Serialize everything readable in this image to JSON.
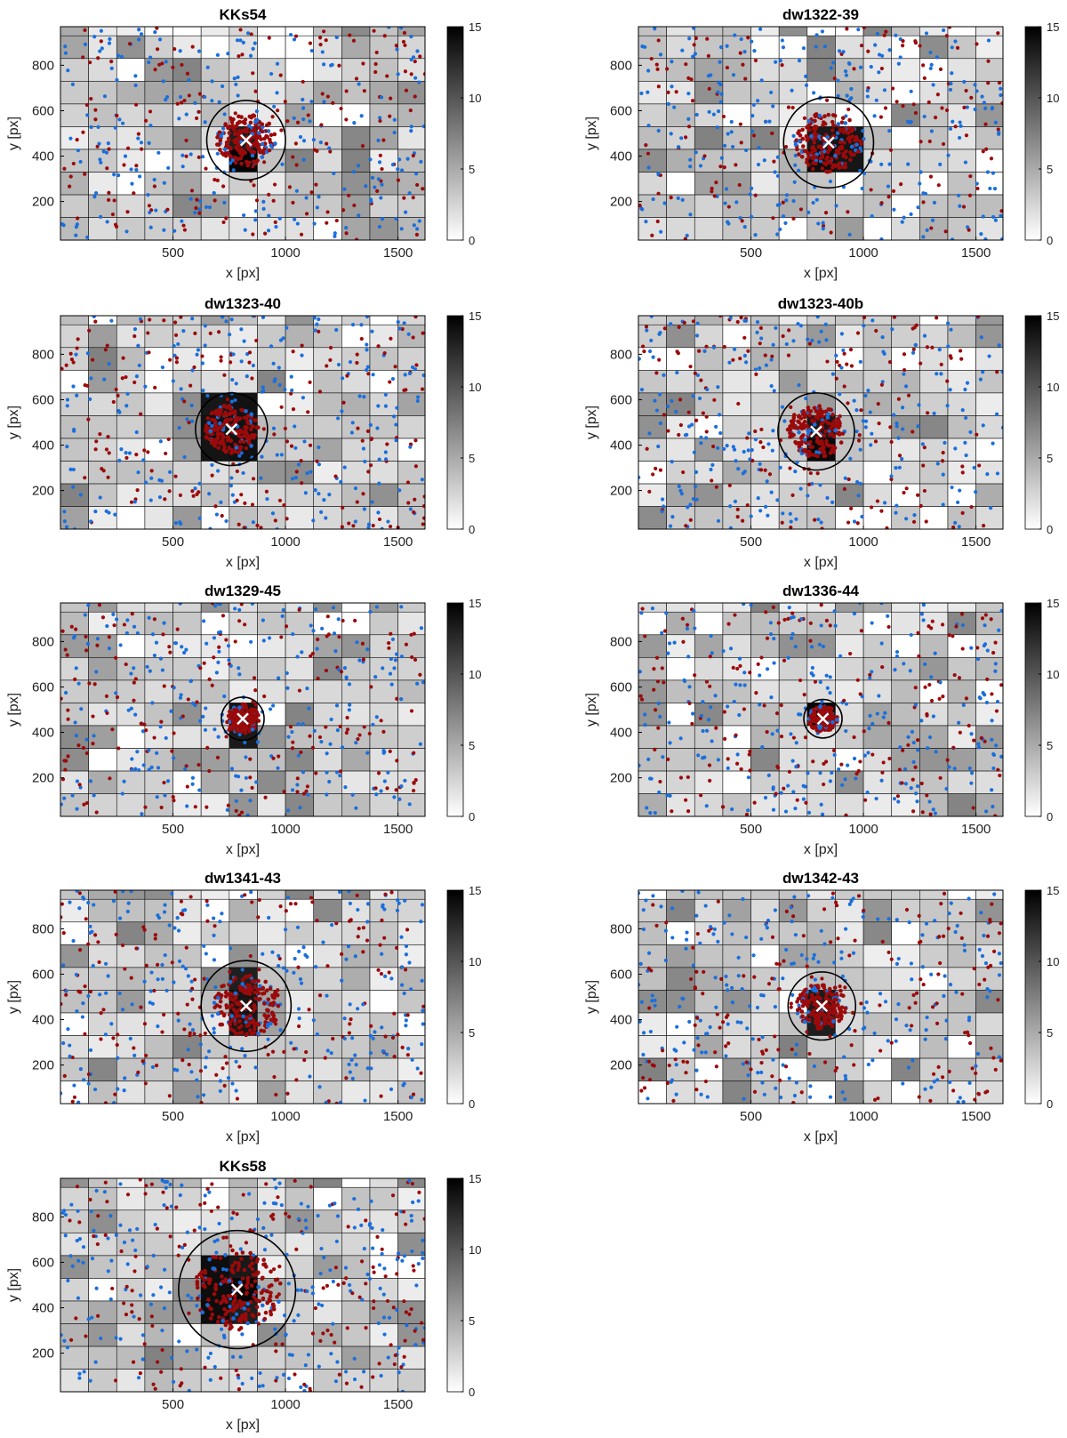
{
  "chart_data": [
    {
      "type": "heatmap",
      "title": "KKs54",
      "xlabel": "x [px]",
      "ylabel": "y [px]",
      "xlim": [
        0,
        1620
      ],
      "ylim": [
        30,
        970
      ],
      "xticks": [
        500,
        1000,
        1500
      ],
      "yticks": [
        200,
        400,
        600,
        800
      ],
      "colorbar": {
        "min": 0,
        "max": 15,
        "ticks": [
          0,
          5,
          10,
          15
        ]
      },
      "center": [
        825,
        470
      ],
      "circle_radius": 175,
      "core_rect": [
        725,
        900,
        320,
        570
      ]
    },
    {
      "type": "heatmap",
      "title": "dw1322-39",
      "xlabel": "x [px]",
      "ylabel": "y [px]",
      "xlim": [
        0,
        1620
      ],
      "ylim": [
        30,
        970
      ],
      "xticks": [
        500,
        1000,
        1500
      ],
      "yticks": [
        200,
        400,
        600,
        800
      ],
      "colorbar": {
        "min": 0,
        "max": 15,
        "ticks": [
          0,
          5,
          10,
          15
        ]
      },
      "center": [
        845,
        460
      ],
      "circle_radius": 200,
      "core_rect": [
        720,
        980,
        360,
        560
      ]
    },
    {
      "type": "heatmap",
      "title": "dw1323-40",
      "xlabel": "x [px]",
      "ylabel": "y [px]",
      "xlim": [
        0,
        1620
      ],
      "ylim": [
        30,
        970
      ],
      "xticks": [
        500,
        1000,
        1500
      ],
      "yticks": [
        200,
        400,
        600,
        800
      ],
      "colorbar": {
        "min": 0,
        "max": 15,
        "ticks": [
          0,
          5,
          10,
          15
        ]
      },
      "center": [
        760,
        470
      ],
      "circle_radius": 160,
      "core_rect": [
        600,
        900,
        340,
        640
      ]
    },
    {
      "type": "heatmap",
      "title": "dw1323-40b",
      "xlabel": "x [px]",
      "ylabel": "y [px]",
      "xlim": [
        0,
        1620
      ],
      "ylim": [
        30,
        970
      ],
      "xticks": [
        500,
        1000,
        1500
      ],
      "yticks": [
        200,
        400,
        600,
        800
      ],
      "colorbar": {
        "min": 0,
        "max": 15,
        "ticks": [
          0,
          5,
          10,
          15
        ]
      },
      "center": [
        790,
        460
      ],
      "circle_radius": 170,
      "core_rect": [
        720,
        900,
        320,
        560
      ]
    },
    {
      "type": "heatmap",
      "title": "dw1329-45",
      "xlabel": "x [px]",
      "ylabel": "y [px]",
      "xlim": [
        0,
        1620
      ],
      "ylim": [
        30,
        970
      ],
      "xticks": [
        500,
        1000,
        1500
      ],
      "yticks": [
        200,
        400,
        600,
        800
      ],
      "colorbar": {
        "min": 0,
        "max": 15,
        "ticks": [
          0,
          5,
          10,
          15
        ]
      },
      "center": [
        810,
        460
      ],
      "circle_radius": 95,
      "core_rect": [
        720,
        900,
        360,
        560
      ]
    },
    {
      "type": "heatmap",
      "title": "dw1336-44",
      "xlabel": "x [px]",
      "ylabel": "y [px]",
      "xlim": [
        0,
        1620
      ],
      "ylim": [
        30,
        970
      ],
      "xticks": [
        500,
        1000,
        1500
      ],
      "yticks": [
        200,
        400,
        600,
        800
      ],
      "colorbar": {
        "min": 0,
        "max": 15,
        "ticks": [
          0,
          5,
          10,
          15
        ]
      },
      "center": [
        820,
        460
      ],
      "circle_radius": 85,
      "core_rect": [
        720,
        900,
        380,
        540
      ]
    },
    {
      "type": "heatmap",
      "title": "dw1341-43",
      "xlabel": "x [px]",
      "ylabel": "y [px]",
      "xlim": [
        0,
        1620
      ],
      "ylim": [
        30,
        970
      ],
      "xticks": [
        500,
        1000,
        1500
      ],
      "yticks": [
        200,
        400,
        600,
        800
      ],
      "colorbar": {
        "min": 0,
        "max": 15,
        "ticks": [
          0,
          5,
          10,
          15
        ]
      },
      "center": [
        825,
        460
      ],
      "circle_radius": 200,
      "core_rect": [
        720,
        900,
        300,
        660
      ]
    },
    {
      "type": "heatmap",
      "title": "dw1342-43",
      "xlabel": "x [px]",
      "ylabel": "y [px]",
      "xlim": [
        0,
        1620
      ],
      "ylim": [
        30,
        970
      ],
      "xticks": [
        500,
        1000,
        1500
      ],
      "yticks": [
        200,
        400,
        600,
        800
      ],
      "colorbar": {
        "min": 0,
        "max": 15,
        "ticks": [
          0,
          5,
          10,
          15
        ]
      },
      "center": [
        815,
        460
      ],
      "circle_radius": 150,
      "core_rect": [
        720,
        900,
        320,
        540
      ]
    },
    {
      "type": "heatmap",
      "title": "KKs58",
      "xlabel": "x [px]",
      "ylabel": "y [px]",
      "xlim": [
        0,
        1620
      ],
      "ylim": [
        30,
        970
      ],
      "xticks": [
        500,
        1000,
        1500
      ],
      "yticks": [
        200,
        400,
        600,
        800
      ],
      "colorbar": {
        "min": 0,
        "max": 15,
        "ticks": [
          0,
          5,
          10,
          15
        ]
      },
      "center": [
        785,
        480
      ],
      "circle_radius": 260,
      "core_rect": [
        600,
        920,
        340,
        660
      ]
    }
  ],
  "colors": {
    "blue_points": "#1a6fdc",
    "red_points": "#9b0a0a",
    "cross": "#ffffff",
    "circle": "#000000",
    "grid": "#111111"
  }
}
